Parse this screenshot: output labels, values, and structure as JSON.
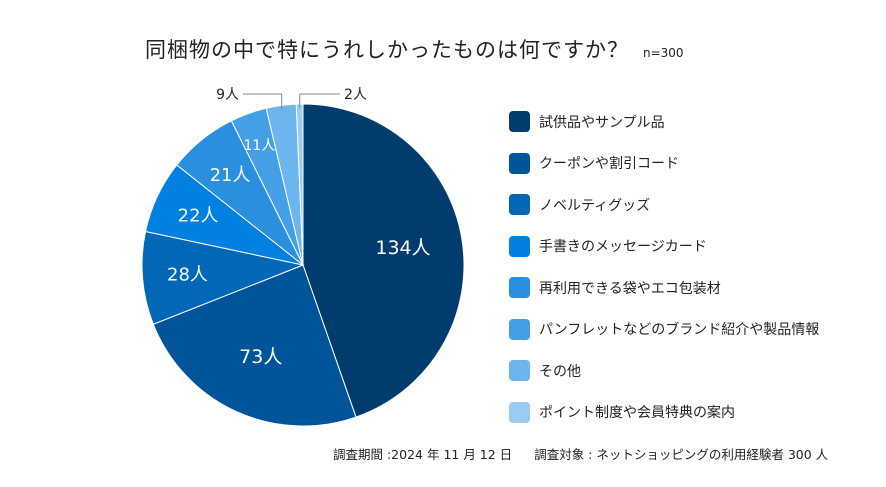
{
  "chart_data": {
    "type": "pie",
    "title": "同梱物の中で特にうれしかったものは何ですか？",
    "sample_size": "n=300",
    "unit": "人",
    "start_angle": "top",
    "direction": "clockwise",
    "legend_placement": "right",
    "slices": [
      {
        "label": "試供品やサンプル品",
        "value": 134,
        "data_label": "134人",
        "color": "#003d6e"
      },
      {
        "label": "クーポンや割引コード",
        "value": 73,
        "data_label": "73人",
        "color": "#00559a"
      },
      {
        "label": "ノベルティグッズ",
        "value": 28,
        "data_label": "28人",
        "color": "#0068b7"
      },
      {
        "label": "手書きのメッセージカード",
        "value": 22,
        "data_label": "22人",
        "color": "#0080e0"
      },
      {
        "label": "再利用できる袋やエコ包装材",
        "value": 21,
        "data_label": "21人",
        "color": "#2b8fe0"
      },
      {
        "label": "パンフレットなどのブランド紹介や製品情報",
        "value": 11,
        "data_label": "11人",
        "color": "#449fe6"
      },
      {
        "label": "その他",
        "value": 9,
        "data_label": "9人",
        "color": "#6db5ee"
      },
      {
        "label": "ポイント制度や会員特典の案内",
        "value": 2,
        "data_label": "2人",
        "color": "#9ccbf2"
      }
    ]
  },
  "footer": {
    "period": "調査期間 :2024 年 11 月 12 日",
    "target": "調査対象 : ネットショッピングの利用経験者 300 人"
  }
}
